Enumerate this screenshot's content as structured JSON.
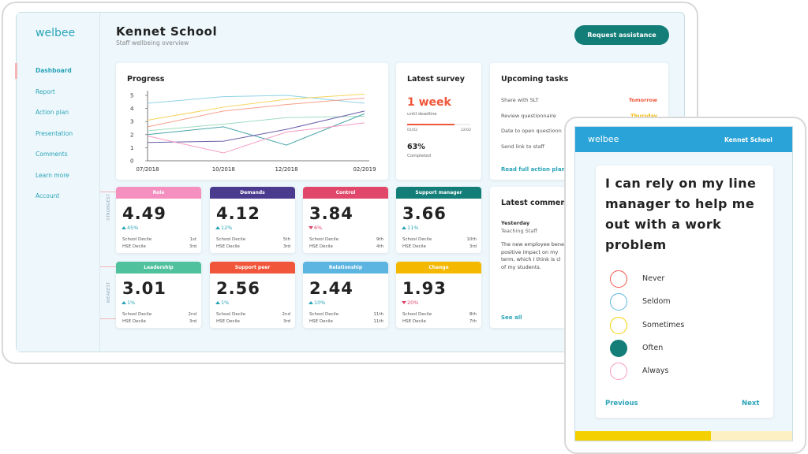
{
  "sidebar": {
    "logo": "welbee",
    "items": [
      "Dashboard",
      "Report",
      "Action plan",
      "Presentation",
      "Comments",
      "Learn more",
      "Account"
    ],
    "active": 0
  },
  "header": {
    "title": "Kennet School",
    "subtitle": "Staff wellbeing overview",
    "button": "Request assistance"
  },
  "chart_data": {
    "type": "line",
    "title": "Progress",
    "categories": [
      "07/2018",
      "10/2018",
      "12/2018",
      "02/2019"
    ],
    "ylim": [
      0,
      5
    ],
    "yticks": [
      0,
      1,
      2,
      3,
      4,
      5
    ],
    "series": [
      {
        "color": "#8fd3e8",
        "values": [
          4.4,
          4.9,
          5.0,
          4.4
        ]
      },
      {
        "color": "#f7d35a",
        "values": [
          3.1,
          4.1,
          4.7,
          5.1
        ]
      },
      {
        "color": "#f7a08a",
        "values": [
          2.6,
          3.8,
          4.3,
          4.8
        ]
      },
      {
        "color": "#9fdcc0",
        "values": [
          2.3,
          2.8,
          3.3,
          3.4
        ]
      },
      {
        "color": "#4aa6a8",
        "values": [
          2.0,
          2.6,
          1.2,
          3.6
        ]
      },
      {
        "color": "#6c5fa8",
        "values": [
          1.4,
          1.5,
          2.4,
          3.8
        ]
      },
      {
        "color": "#f59ac3",
        "values": [
          1.9,
          0.6,
          2.2,
          2.9
        ]
      }
    ]
  },
  "survey": {
    "title": "Latest survey",
    "deadline": "1 week",
    "deadline_note": "until deadline",
    "start": "01/02",
    "end": "22/02",
    "completed": "63%",
    "completed_label": "Completed"
  },
  "tasks": {
    "title": "Upcoming tasks",
    "items": [
      {
        "task": "Share with SLT",
        "when": "Tomorrow",
        "color": "#f0563a"
      },
      {
        "task": "Review questionnaire",
        "when": "Thursday",
        "color": "#f5b800"
      },
      {
        "task": "Date to open questionn"
      },
      {
        "task": "Send link to staff"
      }
    ],
    "link": "Read full action plan"
  },
  "side_labels": [
    "STRONGEST",
    "WEAKEST"
  ],
  "cards": [
    {
      "name": "Role",
      "color": "#f48fbf",
      "score": "4.49",
      "change": "45%",
      "trend": "up",
      "school": "1st",
      "hse": "3rd"
    },
    {
      "name": "Demands",
      "color": "#4b3b8f",
      "score": "4.12",
      "change": "12%",
      "trend": "up",
      "school": "5th",
      "hse": "3rd"
    },
    {
      "name": "Control",
      "color": "#e0476a",
      "score": "3.84",
      "change": "6%",
      "trend": "down",
      "school": "9th",
      "hse": "4th"
    },
    {
      "name": "Support manager",
      "color": "#137d78",
      "score": "3.66",
      "change": "11%",
      "trend": "up",
      "school": "10th",
      "hse": "3rd"
    },
    {
      "name": "Leadership",
      "color": "#4fc19c",
      "score": "3.01",
      "change": "1%",
      "trend": "up",
      "school": "2nd",
      "hse": "3rd"
    },
    {
      "name": "Support peer",
      "color": "#f2563a",
      "score": "2.56",
      "change": "1%",
      "trend": "up",
      "school": "2nd",
      "hse": "3rd"
    },
    {
      "name": "Relationship",
      "color": "#5bb5e0",
      "score": "2.44",
      "change": "10%",
      "trend": "up",
      "school": "11th",
      "hse": "11th"
    },
    {
      "name": "Change",
      "color": "#f5b800",
      "score": "1.93",
      "change": "20%",
      "trend": "down",
      "school": "8th",
      "hse": "7th"
    }
  ],
  "decile_labels": [
    "School Decile",
    "HSE Decile"
  ],
  "comments": {
    "title": "Latest comments",
    "when": "Yesterday",
    "who": "Teaching Staff",
    "lines": [
      "The new employee bene",
      "positive impact on my",
      "term, which I think is cl",
      "of my students."
    ],
    "link": "See all"
  },
  "phone": {
    "logo": "welbee",
    "school": "Kennet School",
    "question": "I can rely on my line manager to help me out with a work problem",
    "options": [
      {
        "label": "Never",
        "color": "#f0564a"
      },
      {
        "label": "Seldom",
        "color": "#5bb5e0"
      },
      {
        "label": "Sometimes",
        "color": "#f5d000"
      },
      {
        "label": "Often",
        "color": "#137d78"
      },
      {
        "label": "Always",
        "color": "#f59ac3"
      }
    ],
    "selected": 3,
    "prev": "Previous",
    "next": "Next"
  }
}
